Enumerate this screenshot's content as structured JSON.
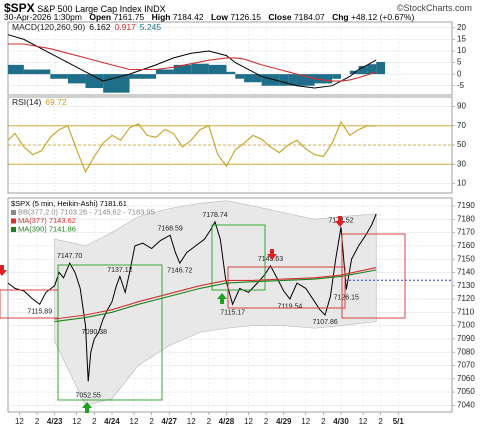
{
  "header": {
    "symbol": "$SPX",
    "name": "S&P 500 Large Cap Index",
    "exchange": "INDX",
    "source": "©StockCharts.com",
    "datetime": "30-Apr-2026 1:30pm",
    "quote": [
      {
        "label": "Open",
        "value": "7161.75"
      },
      {
        "label": "High",
        "value": "7184.42"
      },
      {
        "label": "Low",
        "value": "7126.15"
      },
      {
        "label": "Close",
        "value": "7184.07"
      },
      {
        "label": "Chg",
        "value": "+48.12 (+0.67%)"
      }
    ]
  },
  "chart_data": [
    {
      "type": "line",
      "title": "MACD(120,260,90)",
      "xlim": [
        1.2,
        51.6
      ],
      "ylim": [
        -9,
        22.5
      ],
      "yticks": [
        -5,
        0,
        5,
        10,
        15,
        20
      ],
      "grid": true,
      "x": [
        1.2,
        3,
        6,
        8,
        10,
        12,
        15,
        18,
        20,
        22,
        24,
        26,
        27,
        28,
        30,
        32,
        33,
        34,
        36,
        38,
        39,
        40,
        41,
        42,
        43
      ],
      "series": [
        {
          "name": "5.245",
          "kind": "histogram",
          "color": "#1f6f8b",
          "values": [
            4,
            2,
            -2,
            -4,
            -6,
            -8,
            -2,
            2,
            4,
            4.5,
            4,
            1,
            -2,
            -3.5,
            -5,
            -5,
            -5,
            -5,
            -4,
            -2,
            0,
            1.5,
            3.5,
            4.3,
            5.245
          ]
        },
        {
          "name": "6.162",
          "color": "#000000",
          "values": [
            17,
            15,
            9,
            5,
            1,
            -3,
            0,
            4,
            7,
            9,
            10,
            8,
            5,
            3,
            -1,
            -3,
            -4,
            -5,
            -6,
            -5,
            -3,
            -1,
            2,
            4,
            6.162
          ]
        },
        {
          "name": "0.917",
          "color": "#d03030",
          "values": [
            13,
            13,
            11,
            9,
            7,
            5,
            2,
            2,
            3,
            4.5,
            6,
            7,
            7,
            6.5,
            4,
            2,
            1,
            0,
            -2,
            -3,
            -3,
            -2.5,
            -1.5,
            -0.3,
            0.917
          ]
        }
      ]
    },
    {
      "type": "line",
      "title": "RSI(14)",
      "xlim": [
        1.2,
        51.6
      ],
      "ylim": [
        0,
        100
      ],
      "yticks": [
        10,
        30,
        50,
        70,
        90
      ],
      "grid": true,
      "reference_lines": [
        30,
        50,
        70
      ],
      "reference_color": "#c8a020",
      "x": [
        1.2,
        2,
        3,
        4,
        5,
        6,
        7,
        8,
        9,
        10,
        11,
        12,
        13,
        14,
        15,
        16,
        17,
        18,
        19,
        20,
        21,
        22,
        23,
        24,
        25,
        26,
        27,
        28,
        29,
        30,
        31,
        32,
        33,
        34,
        35,
        36,
        37,
        38,
        39,
        40,
        41,
        42,
        43
      ],
      "series": [
        {
          "name": "69.72",
          "color": "#c8a020",
          "values": [
            55,
            62,
            48,
            40,
            44,
            58,
            66,
            70,
            45,
            22,
            38,
            52,
            60,
            55,
            68,
            72,
            60,
            58,
            66,
            62,
            48,
            55,
            66,
            70,
            40,
            28,
            45,
            52,
            60,
            56,
            48,
            42,
            50,
            55,
            46,
            40,
            38,
            52,
            74,
            60,
            66,
            70,
            69.72
          ]
        }
      ]
    },
    {
      "type": "line",
      "xlim": [
        1.2,
        51.6
      ],
      "ylim": [
        7035,
        7196
      ],
      "yticks": [
        7040,
        7050,
        7060,
        7070,
        7080,
        7090,
        7100,
        7110,
        7120,
        7130,
        7140,
        7150,
        7160,
        7170,
        7180,
        7190
      ],
      "grid": true,
      "xticks": [
        {
          "value": 2.5,
          "label": "12"
        },
        {
          "value": 4.5,
          "label": "2"
        },
        {
          "value": 6.5,
          "label": "4/23"
        },
        {
          "value": 9,
          "label": "12"
        },
        {
          "value": 11,
          "label": "2"
        },
        {
          "value": 13,
          "label": "4/24"
        },
        {
          "value": 15.5,
          "label": "12"
        },
        {
          "value": 17.5,
          "label": "2"
        },
        {
          "value": 19.5,
          "label": "4/27"
        },
        {
          "value": 22,
          "label": "12"
        },
        {
          "value": 24,
          "label": "2"
        },
        {
          "value": 26,
          "label": "4/28"
        },
        {
          "value": 28.5,
          "label": "12"
        },
        {
          "value": 30.5,
          "label": "2"
        },
        {
          "value": 32.5,
          "label": "4/29"
        },
        {
          "value": 35,
          "label": "12"
        },
        {
          "value": 37,
          "label": "2"
        },
        {
          "value": 39,
          "label": "4/30"
        },
        {
          "value": 41.5,
          "label": "12"
        },
        {
          "value": 43.5,
          "label": "2"
        },
        {
          "value": 45.5,
          "label": "5/1"
        }
      ],
      "bands": {
        "name": "BB(377,2.0) 7103.26 - 7145.62 - 7183.95",
        "color": "#e8e8e8",
        "x": [
          6.5,
          10,
          13,
          16,
          19.5,
          23,
          26,
          29,
          32.5,
          36,
          39,
          43
        ],
        "upper": [
          7165,
          7160,
          7170,
          7182,
          7188,
          7192,
          7194,
          7190,
          7185,
          7180,
          7182,
          7184
        ],
        "lower": [
          7088,
          7040,
          7045,
          7070,
          7085,
          7095,
          7098,
          7100,
          7100,
          7098,
          7100,
          7103
        ]
      },
      "series": [
        {
          "name": "$SPX (5 min, Heikin-Ashi) 7181.61",
          "color": "#000000",
          "x": [
            1.2,
            2,
            3,
            4,
            4.8,
            5.5,
            6.5,
            7,
            7.5,
            8.2,
            8.8,
            9.4,
            10,
            10.3,
            10.6,
            11,
            11.5,
            12,
            12.5,
            13,
            13.5,
            13.9,
            14.5,
            15,
            15.6,
            16.5,
            17.5,
            18.5,
            19.6,
            20.2,
            20.7,
            21.5,
            22.5,
            23.5,
            24.2,
            24.7,
            25.3,
            25.9,
            26.7,
            27.5,
            28.5,
            29.5,
            30.3,
            31,
            31.8,
            32.5,
            33.2,
            34,
            35,
            36,
            36.6,
            37.2,
            37.8,
            38.4,
            39,
            39.6,
            40.2,
            41,
            41.8,
            42.5,
            43
          ],
          "values": [
            7132,
            7128,
            7126,
            7120,
            7116,
            7125,
            7130,
            7140,
            7136,
            7147,
            7140,
            7128,
            7100,
            7058,
            7080,
            7090,
            7095,
            7105,
            7112,
            7118,
            7130,
            7137,
            7125,
            7140,
            7160,
            7162,
            7158,
            7164,
            7168,
            7155,
            7147,
            7155,
            7160,
            7165,
            7172,
            7178,
            7165,
            7135,
            7116,
            7128,
            7125,
            7132,
            7138,
            7145,
            7135,
            7126,
            7120,
            7132,
            7128,
            7118,
            7112,
            7108,
            7122,
            7150,
            7174,
            7127,
            7150,
            7160,
            7168,
            7176,
            7184
          ]
        },
        {
          "name": "MA(377) 7143.62",
          "color": "#d03030",
          "x": [
            6.5,
            10,
            13,
            16,
            19.5,
            23,
            26,
            29,
            32.5,
            36,
            39,
            43
          ],
          "values": [
            7105,
            7108,
            7112,
            7118,
            7124,
            7130,
            7134,
            7134,
            7135,
            7136,
            7138,
            7143.62
          ]
        },
        {
          "name": "MA(390) 7141.86",
          "color": "#208020",
          "x": [
            6.5,
            10,
            13,
            16,
            19.5,
            23,
            26,
            29,
            32.5,
            36,
            39,
            43
          ],
          "values": [
            7103,
            7106,
            7110,
            7116,
            7122,
            7128,
            7132,
            7133,
            7134,
            7135,
            7137,
            7141.86
          ]
        }
      ],
      "annotations": [
        {
          "label": "7147.70",
          "x": 8.2,
          "value": 7147.7
        },
        {
          "label": "7115.89",
          "x": 4.8,
          "value": 7115.89
        },
        {
          "label": "7137.12",
          "x": 13.9,
          "value": 7137.12
        },
        {
          "label": "7090.38",
          "x": 11,
          "value": 7090.38
        },
        {
          "label": "7052.55",
          "x": 10.3,
          "value": 7052.55
        },
        {
          "label": "7168.59",
          "x": 19.6,
          "value": 7168.59
        },
        {
          "label": "7146.72",
          "x": 20.7,
          "value": 7146.72
        },
        {
          "label": "7178.74",
          "x": 24.7,
          "value": 7178.74
        },
        {
          "label": "7115.17",
          "x": 26.7,
          "value": 7115.17
        },
        {
          "label": "7145.63",
          "x": 31,
          "value": 7145.63
        },
        {
          "label": "7119.54",
          "x": 33.2,
          "value": 7119.54
        },
        {
          "label": "7107.86",
          "x": 37.2,
          "value": 7107.86
        },
        {
          "label": "7174.52",
          "x": 39,
          "value": 7174.52
        },
        {
          "label": "7126.15",
          "x": 39.6,
          "value": 7126.15
        }
      ]
    }
  ]
}
